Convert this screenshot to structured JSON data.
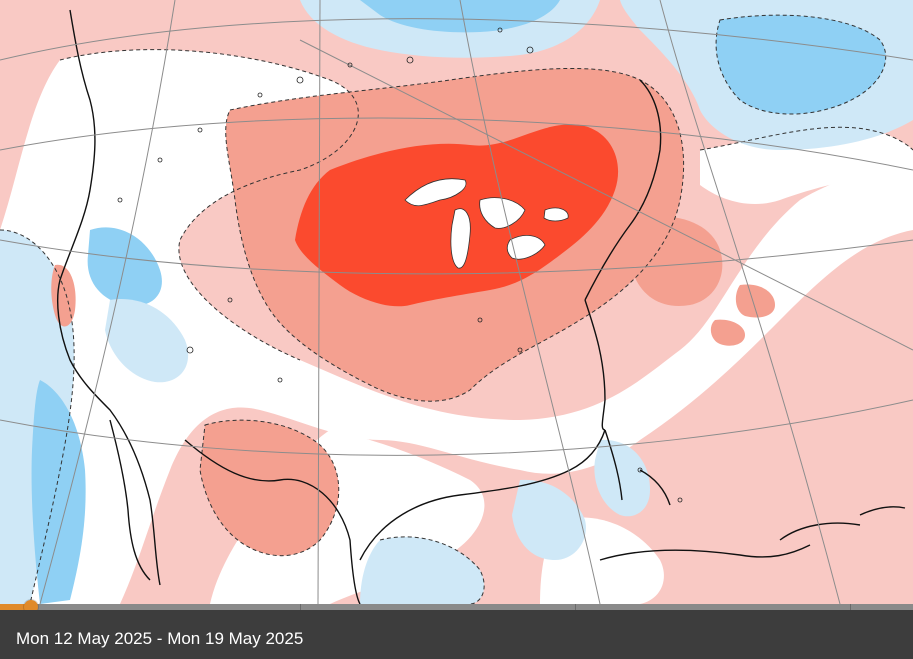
{
  "footer": {
    "date_range": "Mon 12 May 2025 - Mon 19 May 2025"
  },
  "timeline": {
    "progress_fraction": 0.034
  },
  "map": {
    "colors": {
      "strong_warm": "#fb4a2e",
      "warm": "#f4a090",
      "slight_warm": "#f9c9c4",
      "neutral": "#ffffff",
      "slight_cool": "#cfe8f7",
      "cool": "#8fd0f4",
      "coastline": "#111111",
      "graticule": "#8c8c8c"
    }
  }
}
